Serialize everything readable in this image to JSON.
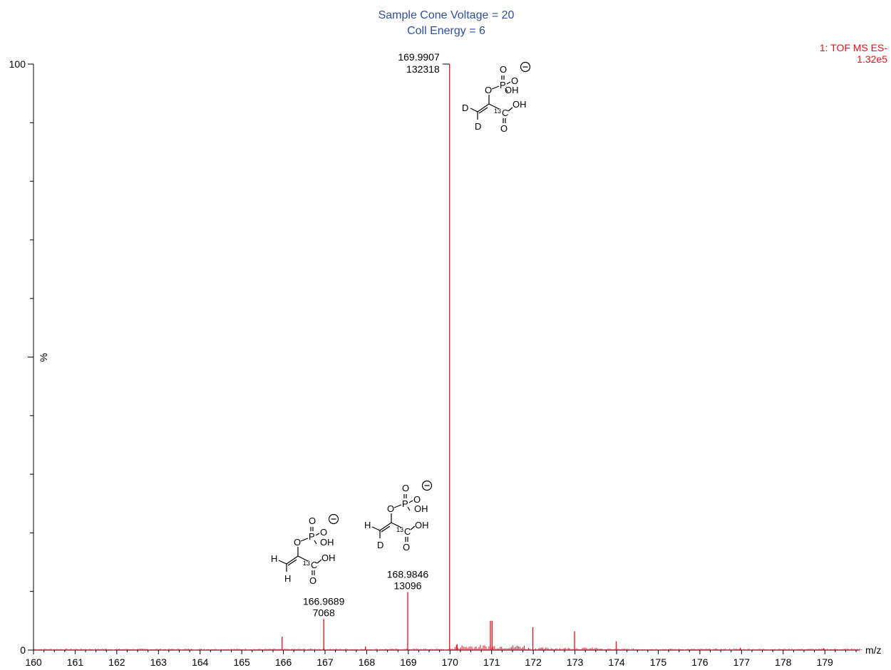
{
  "chart_data": {
    "type": "bar",
    "title": [
      "Sample Cone Voltage = 20",
      "Coll Energy = 6"
    ],
    "trace_label": [
      "1: TOF MS ES-",
      "1.32e5"
    ],
    "xlabel": "m/z",
    "ylabel": "%",
    "xlim": [
      160,
      180
    ],
    "ylim": [
      0,
      100
    ],
    "x_ticks": [
      160,
      161,
      162,
      163,
      164,
      165,
      166,
      167,
      168,
      169,
      170,
      171,
      172,
      173,
      174,
      175,
      176,
      177,
      178,
      179
    ],
    "y_tick_labels": [
      "0",
      "100"
    ],
    "grid": false,
    "colors": {
      "title": "#2f4f9c",
      "trace": "#e8101a",
      "axis": "#000000"
    },
    "peaks": [
      {
        "mz": 165.97,
        "rel": 2.3
      },
      {
        "mz": 166.9689,
        "rel": 5.3,
        "label_mz": "166.9689",
        "label_int": "7068"
      },
      {
        "mz": 167.97,
        "rel": 0.6
      },
      {
        "mz": 168.9846,
        "rel": 9.9,
        "label_mz": "168.9846",
        "label_int": "13096"
      },
      {
        "mz": 169.9907,
        "rel": 100.0,
        "label_mz": "169.9907",
        "label_int": "132318"
      },
      {
        "mz": 170.17,
        "rel": 1.0
      },
      {
        "mz": 170.97,
        "rel": 5.0
      },
      {
        "mz": 171.01,
        "rel": 5.0
      },
      {
        "mz": 171.99,
        "rel": 3.9
      },
      {
        "mz": 172.99,
        "rel": 3.2
      },
      {
        "mz": 173.99,
        "rel": 1.5
      },
      {
        "mz": 176.97,
        "rel": 0.4
      },
      {
        "mz": 178.97,
        "rel": 0.3
      }
    ],
    "annotations": [
      {
        "ion": "m/z 169.9907",
        "atoms": [
          "O",
          "P",
          "O",
          "O",
          "OH",
          "D",
          "D",
          "13",
          "C",
          "OH",
          "O"
        ]
      },
      {
        "ion": "m/z 168.9846",
        "atoms": [
          "O",
          "P",
          "O",
          "O",
          "OH",
          "H",
          "D",
          "13",
          "C",
          "OH",
          "O"
        ]
      },
      {
        "ion": "m/z 166.9689",
        "atoms": [
          "O",
          "P",
          "O",
          "O",
          "OH",
          "H",
          "H",
          "13",
          "C",
          "OH",
          "O"
        ]
      }
    ]
  }
}
